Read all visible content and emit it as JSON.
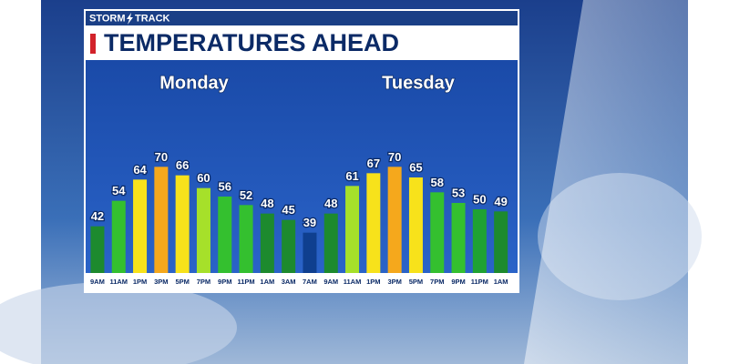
{
  "chart_data": {
    "type": "bar",
    "brand": [
      "STORM",
      "TRACK"
    ],
    "title": "TEMPERATURES AHEAD",
    "annotations": [
      "Monday",
      "Tuesday"
    ],
    "categories": [
      "9AM",
      "11AM",
      "1PM",
      "3PM",
      "5PM",
      "7PM",
      "9PM",
      "11PM",
      "1AM",
      "3AM",
      "7AM",
      "9AM",
      "11AM",
      "1PM",
      "3PM",
      "5PM",
      "7PM",
      "9PM",
      "11PM",
      "1AM"
    ],
    "values": [
      42,
      54,
      64,
      70,
      66,
      60,
      56,
      52,
      48,
      45,
      39,
      48,
      61,
      67,
      70,
      65,
      58,
      53,
      50,
      49
    ],
    "colors": [
      "#1d8a2e",
      "#34c02f",
      "#f7e21b",
      "#f5a81c",
      "#f7e21b",
      "#a6e02a",
      "#34c02f",
      "#34c02f",
      "#1d8a2e",
      "#1d8a2e",
      "#0f3f8f",
      "#1d8a2e",
      "#a6e02a",
      "#f7e21b",
      "#f5a81c",
      "#f7e21b",
      "#34c02f",
      "#34c02f",
      "#1fa233",
      "#1d8a2e"
    ],
    "ylim": [
      20,
      80
    ]
  }
}
